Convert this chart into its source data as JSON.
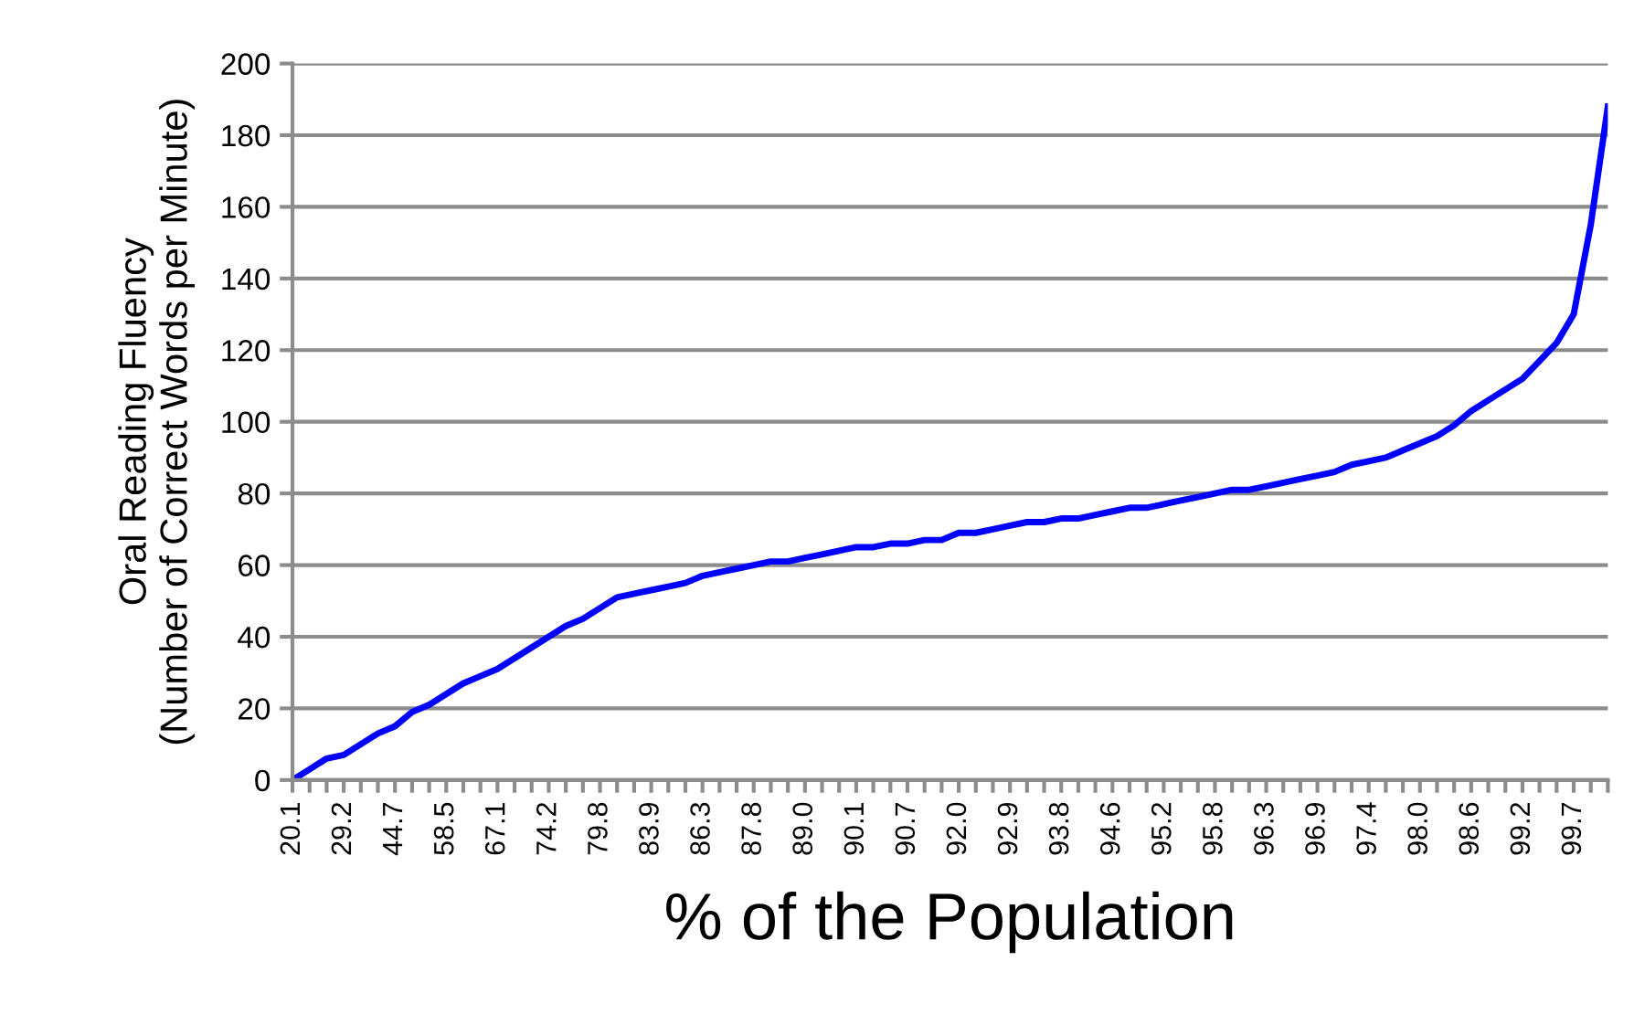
{
  "chart_data": {
    "type": "line",
    "xlabel": "% of the Population",
    "ylabel": "Oral Reading Fluency\n(Number of Correct Words per Minute)",
    "categories": [
      "20.1",
      null,
      null,
      "29.2",
      null,
      null,
      "44.7",
      null,
      null,
      "58.5",
      null,
      null,
      "67.1",
      null,
      null,
      "74.2",
      null,
      null,
      "79.8",
      null,
      null,
      "83.9",
      null,
      null,
      "86.3",
      null,
      null,
      "87.8",
      null,
      null,
      "89.0",
      null,
      null,
      "90.1",
      null,
      null,
      "90.7",
      null,
      null,
      "92.0",
      null,
      null,
      "92.9",
      null,
      null,
      "93.8",
      null,
      null,
      "94.6",
      null,
      null,
      "95.2",
      null,
      null,
      "95.8",
      null,
      null,
      "96.3",
      null,
      null,
      "96.9",
      null,
      null,
      "97.4",
      null,
      null,
      "98.0",
      null,
      null,
      "98.6",
      null,
      null,
      "99.2",
      null,
      null,
      "99.7",
      null,
      null
    ],
    "series": [
      {
        "color": "#0000ff",
        "values": [
          0,
          3,
          6,
          7,
          10,
          13,
          15,
          19,
          21,
          24,
          27,
          29,
          31,
          34,
          37,
          40,
          43,
          45,
          48,
          51,
          52,
          53,
          54,
          55,
          57,
          58,
          59,
          60,
          61,
          61,
          62,
          63,
          64,
          65,
          65,
          66,
          66,
          67,
          67,
          69,
          69,
          70,
          71,
          72,
          72,
          73,
          73,
          74,
          75,
          76,
          76,
          77,
          78,
          79,
          80,
          81,
          81,
          82,
          83,
          84,
          85,
          86,
          88,
          89,
          90,
          92,
          94,
          96,
          99,
          103,
          106,
          109,
          112,
          117,
          122,
          130,
          155,
          188
        ]
      }
    ],
    "ylim": [
      0,
      200
    ],
    "yticks": [
      0,
      20,
      40,
      60,
      80,
      100,
      120,
      140,
      160,
      180,
      200
    ],
    "grid": "y",
    "legend": false,
    "marker": "none",
    "line_style": "solid"
  }
}
